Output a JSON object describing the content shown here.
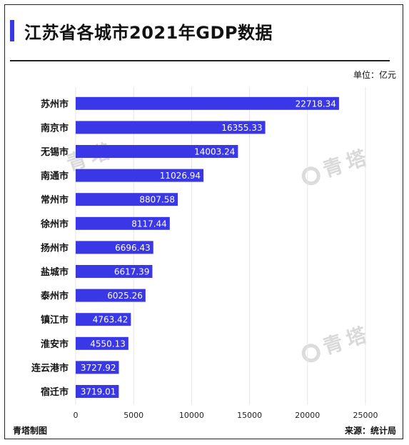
{
  "header": {
    "title": "江苏省各城市2021年GDP数据",
    "unit": "单位：亿元"
  },
  "footer": {
    "left": "青塔制图",
    "right": "来源：统计局"
  },
  "watermark": {
    "text": "青塔"
  },
  "colors": {
    "bar": "#3a37e6",
    "accent": "#3a37e6",
    "grid": "#e6e6e6"
  },
  "chart_data": {
    "type": "bar",
    "orientation": "horizontal",
    "categories": [
      "苏州市",
      "南京市",
      "无锡市",
      "南通市",
      "常州市",
      "徐州市",
      "扬州市",
      "盐城市",
      "泰州市",
      "镇江市",
      "淮安市",
      "连云港市",
      "宿迁市"
    ],
    "values": [
      22718.34,
      16355.33,
      14003.24,
      11026.94,
      8807.58,
      8117.44,
      6696.43,
      6617.39,
      6025.26,
      4763.42,
      4550.13,
      3727.92,
      3719.01
    ],
    "value_labels": [
      "22718.34",
      "16355.33",
      "14003.24",
      "11026.94",
      "8807.58",
      "8117.44",
      "6696.43",
      "6617.39",
      "6025.26",
      "4763.42",
      "4550.13",
      "3727.92",
      "3719.01"
    ],
    "xticks": [
      "0",
      "5000",
      "10000",
      "15000",
      "20000",
      "25000"
    ],
    "xlim": [
      0,
      25000
    ],
    "grid": true,
    "title": "江苏省各城市2021年GDP数据",
    "xlabel": "",
    "ylabel": ""
  }
}
